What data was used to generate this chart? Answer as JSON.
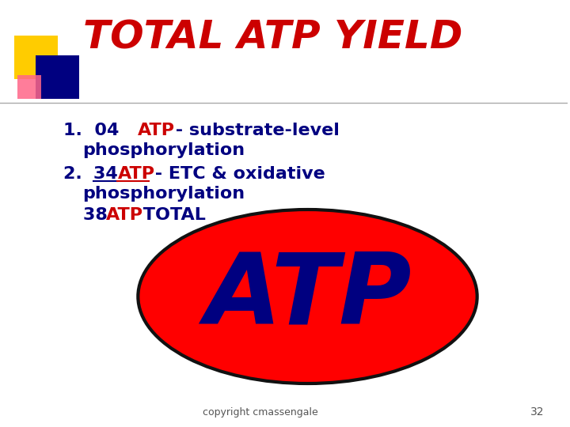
{
  "title": "TOTAL ATP YIELD",
  "title_color": "#cc0000",
  "background_color": "#ffffff",
  "bullet_color": "#000080",
  "atp_color": "#cc0000",
  "ellipse_fill": "#ff0000",
  "ellipse_edge": "#111111",
  "atp_big_color": "#000080",
  "footer_text": "copyright cmassengale",
  "page_number": "32",
  "footer_color": "#555555",
  "square_yellow": "#ffcc00",
  "square_blue": "#000080",
  "square_pink": "#ff6688"
}
